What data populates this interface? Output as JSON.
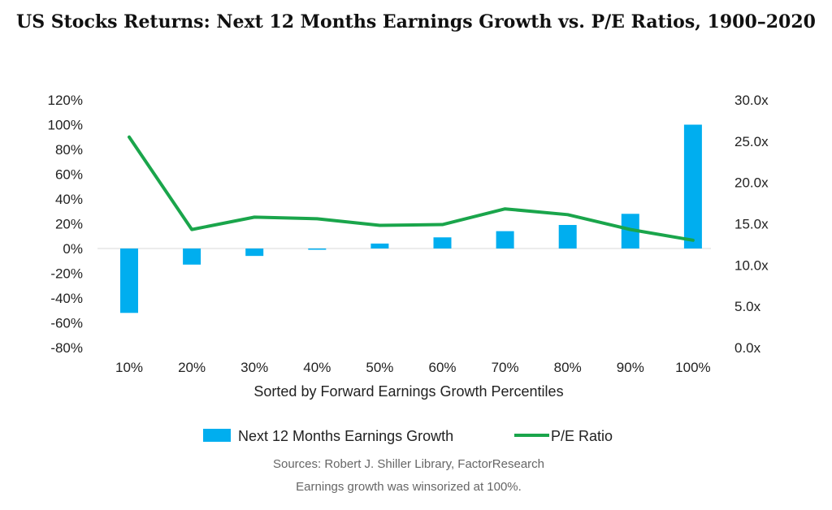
{
  "chart_data": {
    "type": "bar",
    "title": "US Stocks Returns: Next 12 Months Earnings Growth vs. P/E Ratios, 1900–2020",
    "xlabel": "Sorted by Forward Earnings Growth Percentiles",
    "categories": [
      "10%",
      "20%",
      "30%",
      "40%",
      "50%",
      "60%",
      "70%",
      "80%",
      "90%",
      "100%"
    ],
    "y_left": {
      "ticks": [
        "120%",
        "100%",
        "80%",
        "60%",
        "40%",
        "20%",
        "0%",
        "-20%",
        "-40%",
        "-60%",
        "-80%"
      ],
      "ylim": [
        -80,
        120
      ],
      "unit": "%"
    },
    "y_right": {
      "ticks": [
        "30.0x",
        "25.0x",
        "20.0x",
        "15.0x",
        "10.0x",
        "5.0x",
        "0.0x"
      ],
      "ylim": [
        0,
        30
      ],
      "unit": "x"
    },
    "series": [
      {
        "name": "Next 12 Months Earnings Growth",
        "type": "bar",
        "axis": "left",
        "color": "#00aeef",
        "values": [
          -52,
          -13,
          -6,
          -1,
          4,
          9,
          14,
          19,
          28,
          100
        ]
      },
      {
        "name": "P/E Ratio",
        "type": "line",
        "axis": "right",
        "color": "#1aa54b",
        "values": [
          25.5,
          14.3,
          15.8,
          15.6,
          14.8,
          14.9,
          16.8,
          16.1,
          14.3,
          13.0
        ]
      }
    ],
    "legend": "bottom",
    "grid": false
  },
  "footer": {
    "line1": "Sources: Robert J. Shiller Library, FactorResearch",
    "line2": "Earnings growth was winsorized at 100%."
  }
}
